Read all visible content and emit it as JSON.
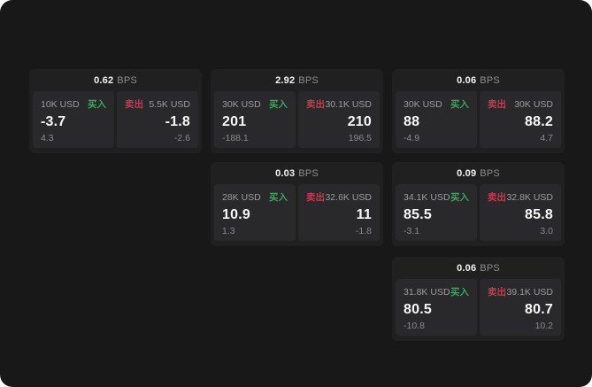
{
  "colors": {
    "buy": "#3da35e",
    "sell": "#c53a50",
    "background": "#181818",
    "card": "#202021",
    "panel": "#29292b"
  },
  "cards": [
    {
      "bps_value": "0.62",
      "bps_label": "BPS",
      "buy": {
        "amount": "10K USD",
        "side_label": "买入",
        "value": "-3.7",
        "delta": "4.3"
      },
      "sell": {
        "amount": "5.5K USD",
        "side_label": "卖出",
        "value": "-1.8",
        "delta": "-2.6"
      }
    },
    {
      "bps_value": "2.92",
      "bps_label": "BPS",
      "buy": {
        "amount": "30K USD",
        "side_label": "买入",
        "value": "201",
        "delta": "-188.1"
      },
      "sell": {
        "amount": "30.1K USD",
        "side_label": "卖出",
        "value": "210",
        "delta": "196.5"
      }
    },
    {
      "bps_value": "0.06",
      "bps_label": "BPS",
      "buy": {
        "amount": "30K USD",
        "side_label": "买入",
        "value": "88",
        "delta": "-4.9"
      },
      "sell": {
        "amount": "30K USD",
        "side_label": "卖出",
        "value": "88.2",
        "delta": "4.7"
      }
    },
    {
      "bps_value": "0.03",
      "bps_label": "BPS",
      "buy": {
        "amount": "28K USD",
        "side_label": "买入",
        "value": "10.9",
        "delta": "1.3"
      },
      "sell": {
        "amount": "32.6K USD",
        "side_label": "卖出",
        "value": "11",
        "delta": "-1.8"
      }
    },
    {
      "bps_value": "0.09",
      "bps_label": "BPS",
      "buy": {
        "amount": "34.1K USD",
        "side_label": "买入",
        "value": "85.5",
        "delta": "-3.1"
      },
      "sell": {
        "amount": "32.8K USD",
        "side_label": "卖出",
        "value": "85.8",
        "delta": "3.0"
      }
    },
    {
      "bps_value": "0.06",
      "bps_label": "BPS",
      "buy": {
        "amount": "31.8K USD",
        "side_label": "买入",
        "value": "80.5",
        "delta": "-10.8"
      },
      "sell": {
        "amount": "39.1K USD",
        "side_label": "卖出",
        "value": "80.7",
        "delta": "10.2"
      }
    }
  ]
}
